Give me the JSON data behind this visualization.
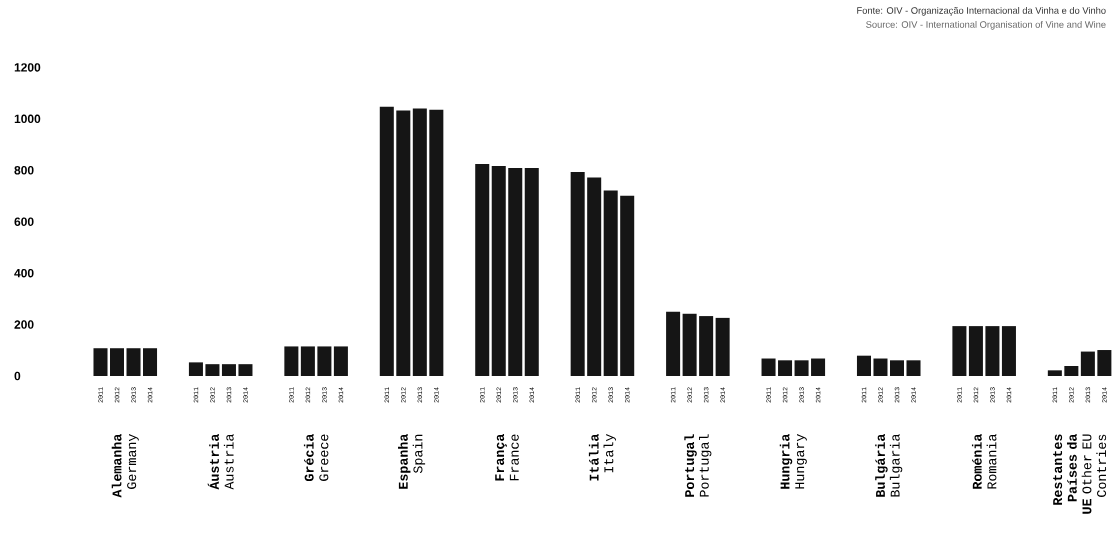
{
  "chart_data": {
    "type": "bar",
    "categories": [
      "**Alemanha** Germany",
      "**Áustria** Austria",
      "**Grécia** Greece",
      "**Espanha** Spain",
      "**França** France",
      "**Itália** Italy",
      "**Portugal** Portugal",
      "**Hungria** Hungary",
      "**Bulgária** Bulgaria",
      "**Roménia** Romania",
      "**Restantes Países da UE** Other EU Contries"
    ],
    "series": [
      {
        "name": "2011",
        "color": "#151515",
        "values": [
          108,
          53,
          115,
          1047,
          824,
          793,
          250,
          68,
          79,
          194,
          22
        ]
      },
      {
        "name": "2012",
        "color": "#151515",
        "values": [
          108,
          46,
          115,
          1032,
          817,
          772,
          242,
          61,
          68,
          194,
          39
        ]
      },
      {
        "name": "2013",
        "color": "#151515",
        "values": [
          108,
          46,
          115,
          1040,
          809,
          721,
          233,
          61,
          61,
          194,
          95
        ]
      },
      {
        "name": "2014",
        "color": "#151515",
        "values": [
          108,
          46,
          115,
          1035,
          809,
          701,
          226,
          68,
          61,
          194,
          101
        ]
      }
    ],
    "ylim": [
      0,
      1200
    ],
    "yticks": [
      0,
      200,
      400,
      600,
      800,
      1000,
      1200
    ],
    "annotations": [
      "Fonte: OIV - Organização Internacional da Vinha e do Vinho",
      "Source: OIV - International Organisation of Vine and Wine"
    ]
  }
}
